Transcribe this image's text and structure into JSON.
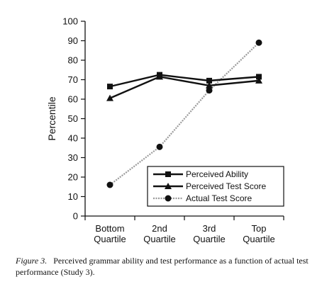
{
  "chart_data": {
    "type": "line",
    "categories": [
      [
        "Bottom",
        "Quartile"
      ],
      [
        "2nd",
        "Quartile"
      ],
      [
        "3rd",
        "Quartile"
      ],
      [
        "Top",
        "Quartile"
      ]
    ],
    "ylabel": "Percentile",
    "ylim": [
      0,
      100
    ],
    "yticks": [
      0,
      10,
      20,
      30,
      40,
      50,
      60,
      70,
      80,
      90,
      100
    ],
    "grid": false,
    "legend_position": "bottom-right",
    "series": [
      {
        "name": "Perceived Ability",
        "marker": "square",
        "line": "solid",
        "color": "#111111",
        "values": [
          66.5,
          72.5,
          69.5,
          71.5
        ]
      },
      {
        "name": "Perceived Test Score",
        "marker": "triangle",
        "line": "solid",
        "color": "#111111",
        "values": [
          60.5,
          71.5,
          67,
          69.5
        ]
      },
      {
        "name": "Actual Test Score",
        "marker": "circle",
        "line": "dashed-gray",
        "color": "#999999",
        "values": [
          16,
          35.5,
          64.5,
          89
        ]
      }
    ]
  },
  "caption": {
    "label": "Figure 3.",
    "text": "Perceived grammar ability and test performance as a function of actual test performance (Study 3)."
  }
}
